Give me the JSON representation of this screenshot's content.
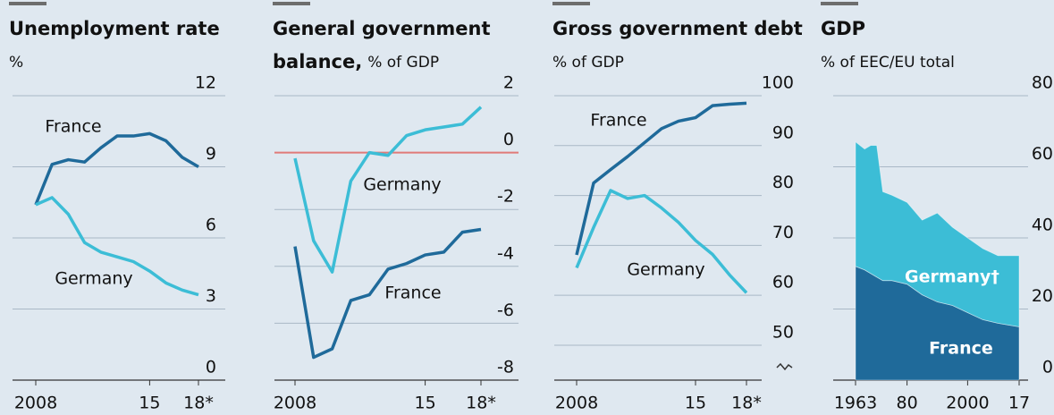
{
  "chart_data": [
    {
      "type": "line",
      "title": "Unemployment rate",
      "subtitle": "%",
      "x": [
        2008,
        2009,
        2010,
        2011,
        2012,
        2013,
        2014,
        2015,
        2016,
        2017,
        2018
      ],
      "xlim": [
        2008,
        2018
      ],
      "xticks": [
        2008,
        {
          "value": 2015,
          "label": "15"
        },
        {
          "value": 2018,
          "label": "18*"
        }
      ],
      "ylim": [
        0,
        12
      ],
      "yticks": [
        0,
        3,
        6,
        9,
        12
      ],
      "grid": true,
      "series": [
        {
          "name": "France",
          "color": "#1f6a9a",
          "values": [
            7.4,
            9.1,
            9.3,
            9.2,
            9.8,
            10.3,
            10.3,
            10.4,
            10.1,
            9.4,
            9.0
          ]
        },
        {
          "name": "Germany",
          "color": "#3cbdd6",
          "values": [
            7.4,
            7.7,
            7.0,
            5.8,
            5.4,
            5.2,
            5.0,
            4.6,
            4.1,
            3.8,
            3.6
          ]
        }
      ]
    },
    {
      "type": "line",
      "title": "General government balance,",
      "subtitle": "% of GDP",
      "x": [
        2008,
        2009,
        2010,
        2011,
        2012,
        2013,
        2014,
        2015,
        2016,
        2017,
        2018
      ],
      "xlim": [
        2008,
        2018
      ],
      "xticks": [
        2008,
        {
          "value": 2015,
          "label": "15"
        },
        {
          "value": 2018,
          "label": "18*"
        }
      ],
      "ylim": [
        -8,
        2
      ],
      "yticks": [
        -8,
        -6,
        -4,
        -2,
        0,
        2
      ],
      "grid": true,
      "reference_line": {
        "value": 0,
        "color": "#e07a78"
      },
      "series": [
        {
          "name": "Germany",
          "color": "#3cbdd6",
          "values": [
            -0.2,
            -3.1,
            -4.2,
            -1.0,
            0.0,
            -0.1,
            0.6,
            0.8,
            0.9,
            1.0,
            1.6
          ]
        },
        {
          "name": "France",
          "color": "#1f6a9a",
          "values": [
            -3.3,
            -7.2,
            -6.9,
            -5.2,
            -5.0,
            -4.1,
            -3.9,
            -3.6,
            -3.5,
            -2.8,
            -2.7
          ]
        }
      ]
    },
    {
      "type": "line",
      "title": "Gross government debt",
      "subtitle": "% of GDP",
      "x": [
        2008,
        2009,
        2010,
        2011,
        2012,
        2013,
        2014,
        2015,
        2016,
        2017,
        2018
      ],
      "xlim": [
        2008,
        2018
      ],
      "xticks": [
        2008,
        {
          "value": 2015,
          "label": "15"
        },
        {
          "value": 2018,
          "label": "18*"
        }
      ],
      "ylim": [
        43,
        100
      ],
      "yticks": [
        50,
        60,
        70,
        80,
        90,
        100
      ],
      "grid": true,
      "axis_break": true,
      "series": [
        {
          "name": "France",
          "color": "#1f6a9a",
          "values": [
            68.1,
            82.5,
            85.2,
            87.8,
            90.6,
            93.4,
            94.9,
            95.6,
            98.0,
            98.3,
            98.5
          ]
        },
        {
          "name": "Germany",
          "color": "#3cbdd6",
          "values": [
            65.5,
            73.6,
            81.0,
            79.4,
            80.0,
            77.5,
            74.6,
            71.0,
            68.2,
            64.1,
            60.5
          ]
        }
      ]
    },
    {
      "type": "area",
      "title": "GDP",
      "subtitle": "% of EEC/EU total",
      "stacked": true,
      "x": [
        1963,
        1966,
        1968,
        1970,
        1972,
        1975,
        1980,
        1985,
        1990,
        1995,
        2000,
        2005,
        2010,
        2017
      ],
      "xlim": [
        1963,
        2017
      ],
      "xticks": [
        1963,
        {
          "value": 1980,
          "label": "80"
        },
        2000,
        {
          "value": 2017,
          "label": "17"
        }
      ],
      "ylim": [
        0,
        80
      ],
      "yticks": [
        0,
        20,
        40,
        60,
        80
      ],
      "grid": true,
      "series": [
        {
          "name": "France",
          "color": "#1f6a9a",
          "values": [
            32,
            31,
            30,
            29,
            28,
            28,
            27,
            24,
            22,
            21,
            19,
            17,
            16,
            15
          ]
        },
        {
          "name": "Germany†",
          "color": "#3cbdd6",
          "values": [
            35,
            34,
            36,
            37,
            25,
            24,
            23,
            21,
            25,
            22,
            21,
            20,
            19,
            20
          ]
        }
      ]
    }
  ]
}
